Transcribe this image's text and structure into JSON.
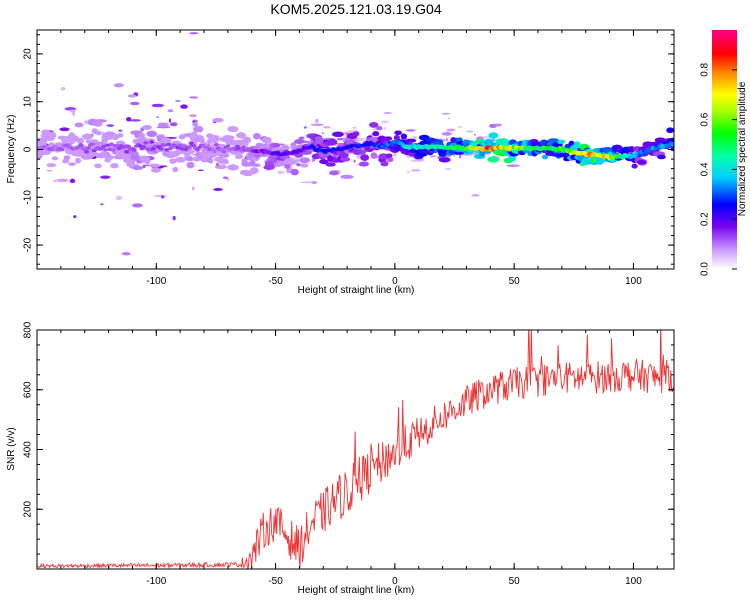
{
  "title": "KOM5.2025.121.03.19.G04",
  "chart_data": [
    {
      "type": "heatmap",
      "xlabel": "Height of straight line (km)",
      "ylabel": "Frequency (Hz)",
      "xlim": [
        -150,
        117
      ],
      "ylim": [
        -25,
        25
      ],
      "xticks": [
        "-100",
        "-50",
        "0",
        "50",
        "100"
      ],
      "xtick_values": [
        -100,
        -50,
        0,
        50,
        100
      ],
      "yticks": [
        "20",
        "10",
        "0",
        "-10",
        "-20"
      ],
      "ytick_values": [
        20,
        10,
        0,
        -10,
        -20
      ],
      "colorbar": {
        "label": "Normalized spectral amplitude",
        "range": [
          0,
          0.96
        ],
        "ticks": [
          "0.0",
          "0.2",
          "0.4",
          "0.6",
          "0.8"
        ],
        "tick_values": [
          0.0,
          0.2,
          0.4,
          0.6,
          0.8
        ],
        "colormap": "rainbow (white-violet-blue-cyan-green-yellow-red-magenta)"
      },
      "ridge_center_hz": {
        "x": [
          -150,
          -120,
          -100,
          -80,
          -65,
          -55,
          -45,
          -35,
          -30,
          -20,
          -10,
          -5,
          0,
          5,
          10,
          20,
          30,
          40,
          50,
          60,
          70,
          80,
          90,
          100,
          105,
          110,
          117
        ],
        "y": [
          0.5,
          0.2,
          0.8,
          0.5,
          0.0,
          -0.5,
          -1.0,
          0.5,
          -0.3,
          0.5,
          1.2,
          0.5,
          1.8,
          0.5,
          0.6,
          0.5,
          0.3,
          0.3,
          0.4,
          0.3,
          0.1,
          -1.0,
          -1.5,
          -1.3,
          -0.5,
          0.5,
          1.2
        ]
      },
      "ridge_amplitude": {
        "x": [
          -150,
          -100,
          -70,
          -60,
          -50,
          -40,
          -30,
          -20,
          -10,
          0,
          10,
          20,
          30,
          40,
          50,
          60,
          70,
          80,
          90,
          100,
          110,
          117
        ],
        "y": [
          0.12,
          0.15,
          0.12,
          0.15,
          0.22,
          0.2,
          0.3,
          0.25,
          0.28,
          0.35,
          0.45,
          0.5,
          0.6,
          0.9,
          0.7,
          0.5,
          0.6,
          0.8,
          0.7,
          0.35,
          0.35,
          0.4
        ]
      }
    },
    {
      "type": "line",
      "xlabel": "Height of straight line (km)",
      "ylabel": "SNR (v/v)",
      "xlim": [
        -150,
        117
      ],
      "ylim": [
        0,
        800
      ],
      "xticks": [
        "-100",
        "-50",
        "0",
        "50",
        "100"
      ],
      "xtick_values": [
        -100,
        -50,
        0,
        50,
        100
      ],
      "yticks": [
        "800",
        "600",
        "400",
        "200"
      ],
      "ytick_values": [
        800,
        600,
        400,
        200
      ],
      "color": "#ee3333",
      "trend": {
        "x": [
          -150,
          -100,
          -65,
          -60,
          -55,
          -50,
          -45,
          -40,
          -35,
          -30,
          -25,
          -20,
          -10,
          0,
          10,
          20,
          30,
          40,
          50,
          60,
          70,
          80,
          90,
          100,
          110,
          117
        ],
        "y": [
          10,
          12,
          15,
          40,
          130,
          160,
          110,
          70,
          150,
          190,
          230,
          260,
          330,
          390,
          450,
          510,
          560,
          600,
          620,
          630,
          640,
          640,
          645,
          650,
          640,
          650
        ]
      },
      "noise_amplitude": {
        "x": [
          -150,
          -65,
          -60,
          -40,
          -20,
          0,
          20,
          50,
          117
        ],
        "y": [
          6,
          8,
          60,
          70,
          80,
          70,
          55,
          55,
          55
        ]
      }
    }
  ]
}
